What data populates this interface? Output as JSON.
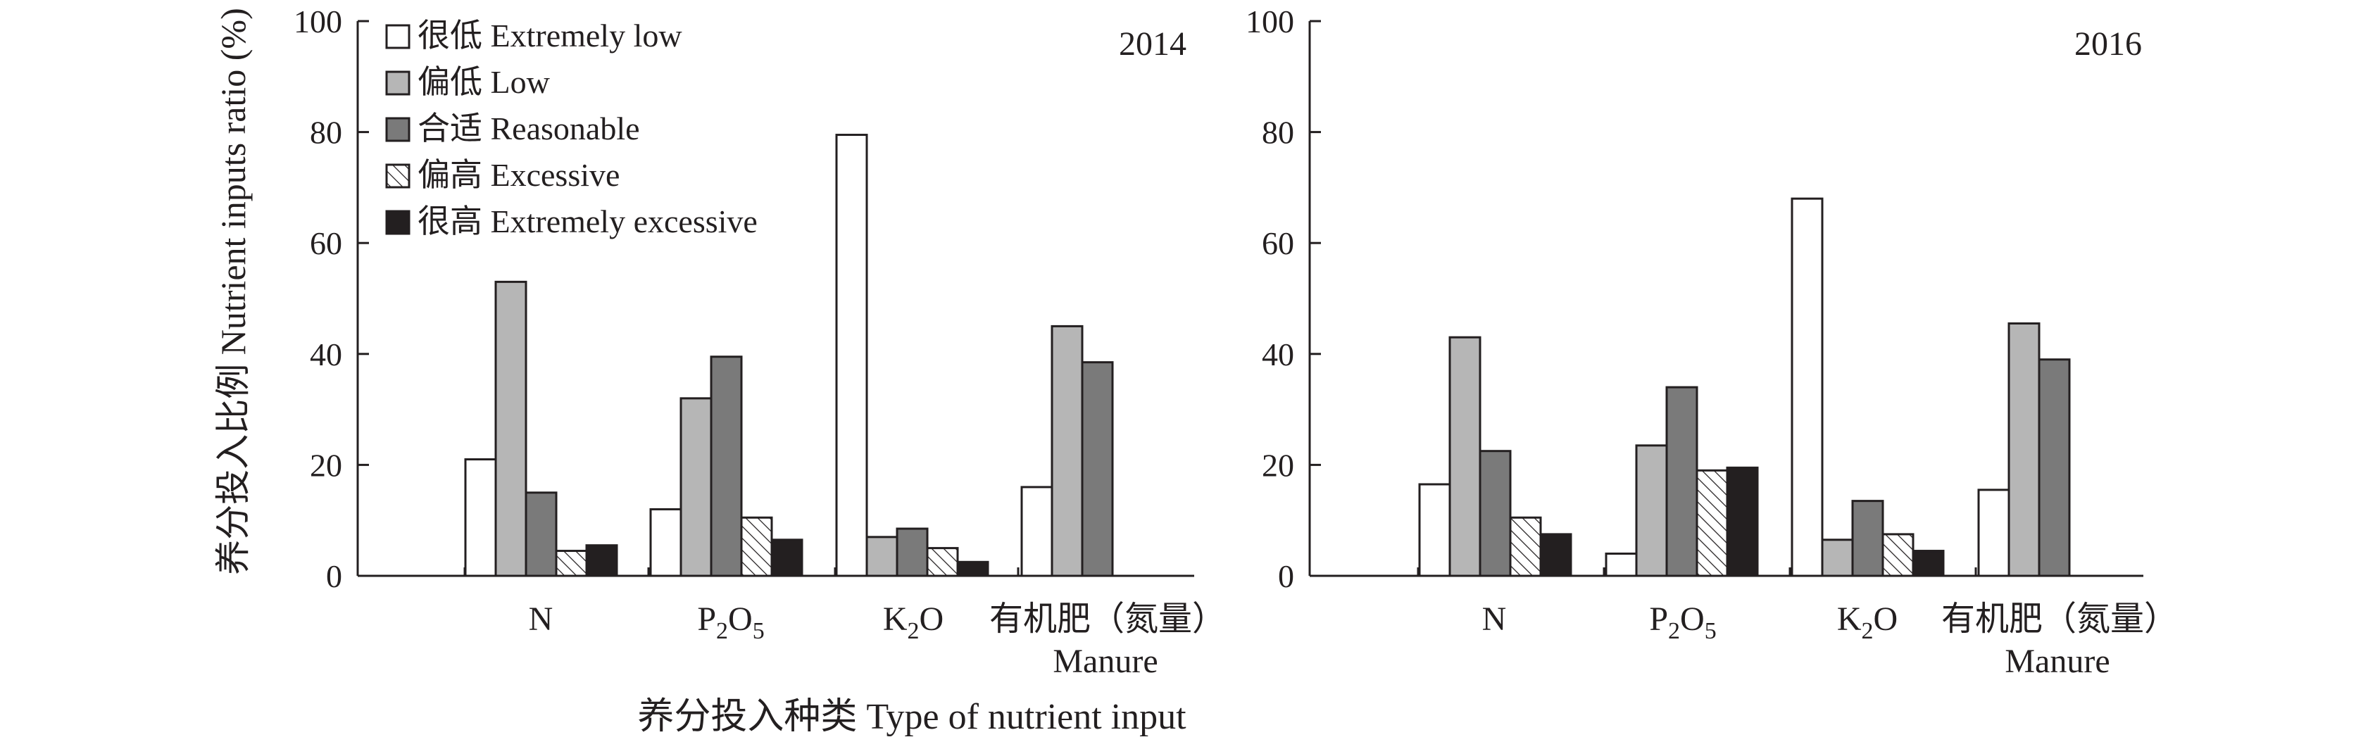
{
  "chart_data": {
    "type": "bar",
    "ylabel": "养分投入比例 Nutrient inputs ratio (%)",
    "xlabel": "养分投入种类 Type of nutrient input",
    "ylim": [
      0,
      100
    ],
    "yticks": [
      "0",
      "20",
      "40",
      "60",
      "80",
      "100"
    ],
    "legend_position": "top-left",
    "categories": [
      {
        "main": "N",
        "second": ""
      },
      {
        "main": "P2O5",
        "second": ""
      },
      {
        "main": "K2O",
        "second": ""
      },
      {
        "main": "有机肥（氮量）",
        "second": "Manure"
      }
    ],
    "series": [
      {
        "name": "很低 Extremely low",
        "fill": "#ffffff",
        "pattern": "none"
      },
      {
        "name": "偏低 Low",
        "fill": "#b6b6b6",
        "pattern": "none"
      },
      {
        "name": "合适 Reasonable",
        "fill": "#7a7a7a",
        "pattern": "none"
      },
      {
        "name": "偏高 Excessive",
        "fill": "#ffffff",
        "pattern": "hatch"
      },
      {
        "name": "很高 Extremely excessive",
        "fill": "#231f20",
        "pattern": "none"
      }
    ],
    "panels": [
      {
        "year": "2014",
        "values": [
          [
            21,
            53,
            15,
            4.5,
            5.5
          ],
          [
            12,
            32,
            39.5,
            10.5,
            6.5
          ],
          [
            79.5,
            7,
            8.5,
            5,
            2.5
          ],
          [
            16,
            45,
            38.5,
            null,
            null
          ]
        ]
      },
      {
        "year": "2016",
        "values": [
          [
            16.5,
            43,
            22.5,
            10.5,
            7.5
          ],
          [
            4,
            23.5,
            34,
            19,
            19.5
          ],
          [
            68,
            6.5,
            13.5,
            7.5,
            4.5
          ],
          [
            15.5,
            45.5,
            39,
            null,
            null
          ]
        ]
      }
    ]
  }
}
